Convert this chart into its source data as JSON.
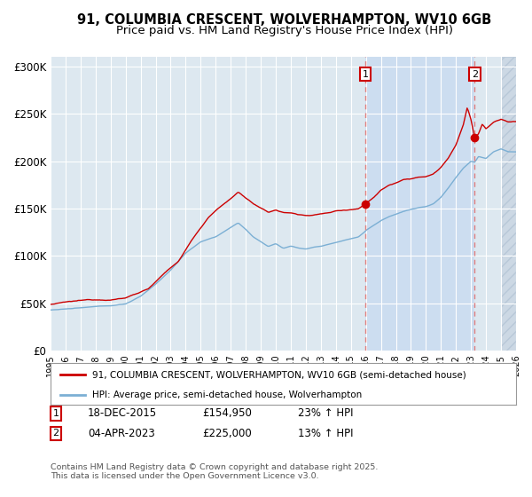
{
  "title": "91, COLUMBIA CRESCENT, WOLVERHAMPTON, WV10 6GB",
  "subtitle": "Price paid vs. HM Land Registry's House Price Index (HPI)",
  "ylabel_ticks": [
    "£0",
    "£50K",
    "£100K",
    "£150K",
    "£200K",
    "£250K",
    "£300K"
  ],
  "ytick_values": [
    0,
    50000,
    100000,
    150000,
    200000,
    250000,
    300000
  ],
  "ylim": [
    0,
    310000
  ],
  "xlim_start": 1995,
  "xlim_end": 2026,
  "line1_color": "#cc0000",
  "line2_color": "#7bafd4",
  "bg_color": "#dde8f0",
  "highlight_color": "#ccddf0",
  "hatch_color": "#ccd8e4",
  "grid_color": "#ffffff",
  "dashed_color": "#e08080",
  "marker1_x": 2015.96,
  "marker1_y": 154950,
  "marker2_x": 2023.25,
  "marker2_y": 225000,
  "marker1_label": "18-DEC-2015",
  "marker1_price": "£154,950",
  "marker1_hpi": "23% ↑ HPI",
  "marker2_label": "04-APR-2023",
  "marker2_price": "£225,000",
  "marker2_hpi": "13% ↑ HPI",
  "legend1": "91, COLUMBIA CRESCENT, WOLVERHAMPTON, WV10 6GB (semi-detached house)",
  "legend2": "HPI: Average price, semi-detached house, Wolverhampton",
  "footnote": "Contains HM Land Registry data © Crown copyright and database right 2025.\nThis data is licensed under the Open Government Licence v3.0.",
  "title_fontsize": 10.5,
  "subtitle_fontsize": 9.5
}
